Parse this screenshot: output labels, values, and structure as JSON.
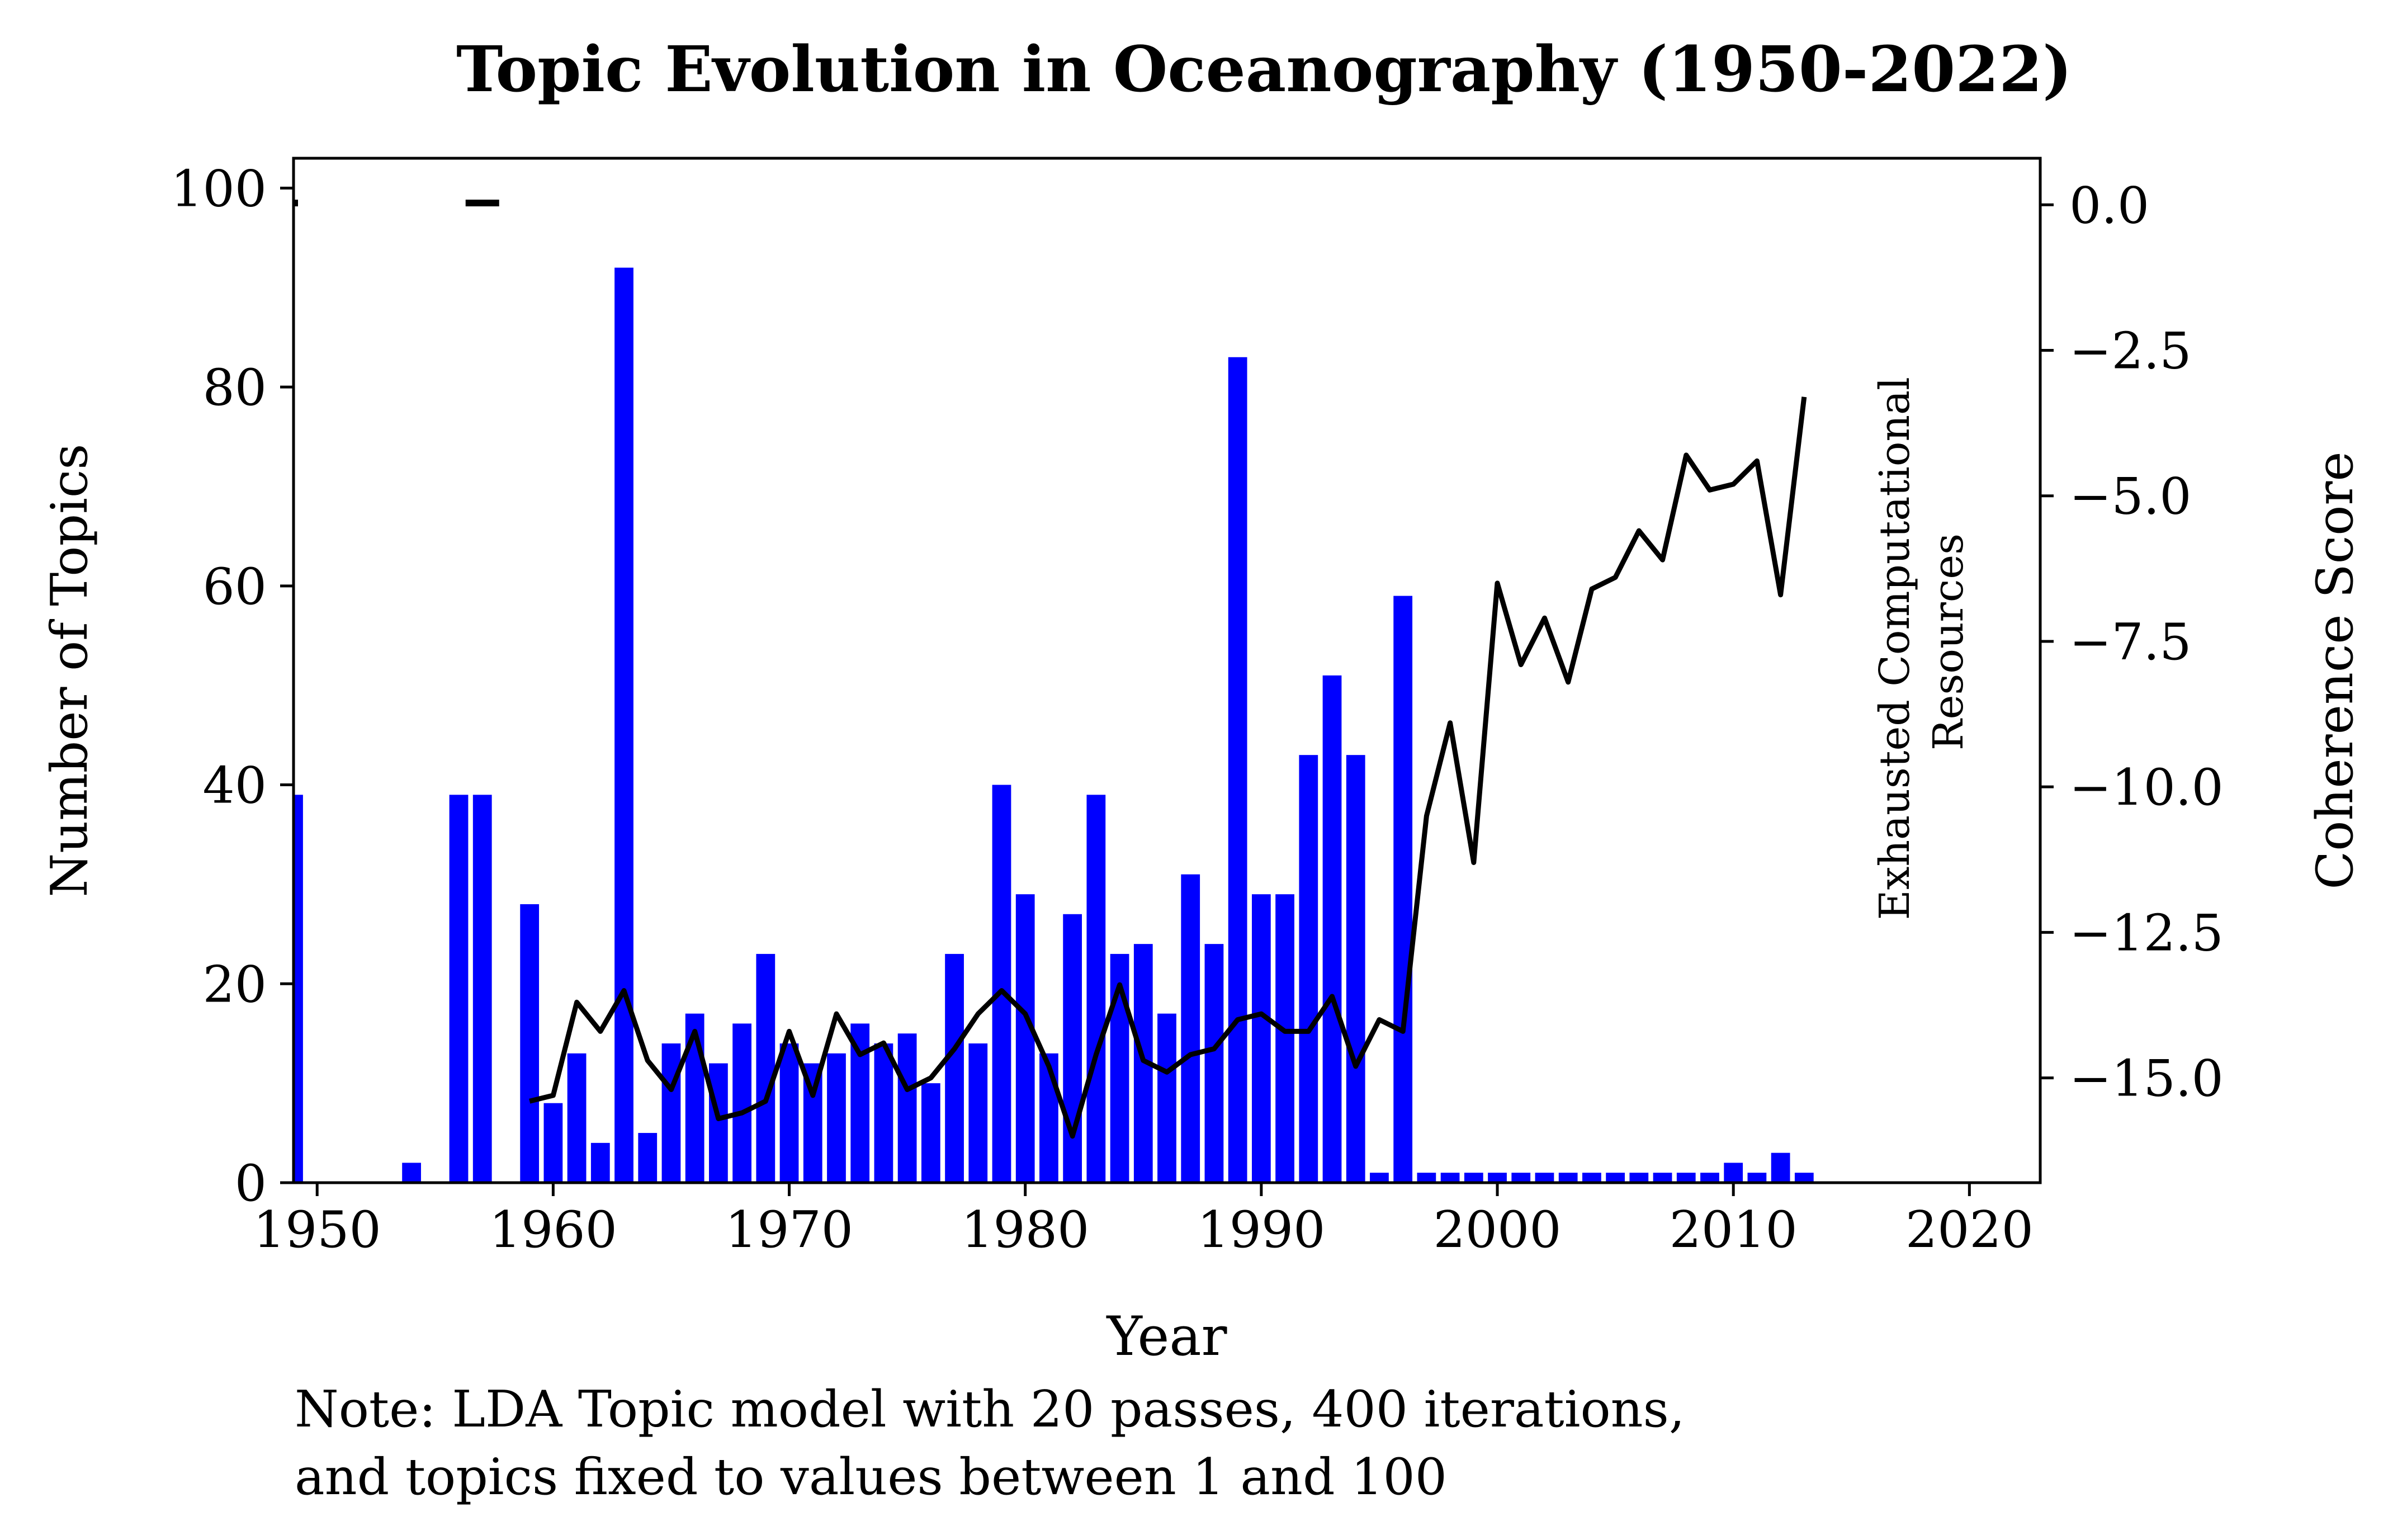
{
  "chart_data": {
    "type": "bar",
    "title": "Topic Evolution in Oceanography (1950-2022)",
    "xlabel": "Year",
    "ylabel": "Number of Topics",
    "y2label": "Coherence Score",
    "xlim": [
      1949,
      2023
    ],
    "ylim": [
      0,
      103
    ],
    "y2lim": [
      -16.8,
      0.8
    ],
    "xticks": [
      1950,
      1960,
      1970,
      1980,
      1990,
      2000,
      2010,
      2020
    ],
    "xtick_labels": [
      "1950",
      "1960",
      "1970",
      "1980",
      "1990",
      "2000",
      "2010",
      "2020"
    ],
    "yticks": [
      0,
      20,
      40,
      60,
      80,
      100
    ],
    "ytick_labels": [
      "0",
      "20",
      "40",
      "60",
      "80",
      "100"
    ],
    "y2ticks": [
      0,
      -2.5,
      -5,
      -7.5,
      -10,
      -12.5,
      -15
    ],
    "y2tick_labels": [
      "0.0",
      "−2.5",
      "−5.0",
      "−7.5",
      "−10.0",
      "−12.5",
      "−15.0"
    ],
    "annotation": "Exhausted Computational Resources",
    "annotation_lines": [
      "Exhausted Computational",
      "Resources"
    ],
    "note_lines": [
      "Note: LDA Topic model with 20 passes, 400 iterations,",
      "and topics fixed to values between 1 and 100"
    ],
    "bar_color": "#0000ff",
    "line_color": "#000000",
    "bars": {
      "x": [
        1949,
        1954,
        1956,
        1957,
        1959,
        1960,
        1961,
        1962,
        1963,
        1964,
        1965,
        1966,
        1967,
        1968,
        1969,
        1970,
        1971,
        1972,
        1973,
        1974,
        1975,
        1976,
        1977,
        1978,
        1979,
        1980,
        1981,
        1982,
        1983,
        1984,
        1985,
        1986,
        1987,
        1988,
        1989,
        1990,
        1991,
        1992,
        1993,
        1994,
        1995,
        1996,
        1997,
        1998,
        1999,
        2000,
        2001,
        2002,
        2003,
        2004,
        2005,
        2006,
        2007,
        2008,
        2009,
        2010,
        2011,
        2012,
        2013
      ],
      "values": [
        39,
        2,
        39,
        39,
        28,
        8,
        13,
        4,
        92,
        5,
        14,
        17,
        12,
        16,
        23,
        14,
        12,
        13,
        16,
        14,
        15,
        10,
        23,
        14,
        40,
        29,
        13,
        27,
        39,
        23,
        24,
        17,
        31,
        24,
        83,
        29,
        29,
        43,
        51,
        43,
        1,
        59,
        1,
        1,
        1,
        1,
        1,
        1,
        1,
        1,
        1,
        1,
        1,
        1,
        1,
        2,
        1,
        3,
        1
      ]
    },
    "coherence_line": {
      "x": [
        1959,
        1960,
        1961,
        1962,
        1963,
        1964,
        1965,
        1966,
        1967,
        1968,
        1969,
        1970,
        1971,
        1972,
        1973,
        1974,
        1975,
        1976,
        1977,
        1978,
        1979,
        1980,
        1981,
        1982,
        1983,
        1984,
        1985,
        1986,
        1987,
        1988,
        1989,
        1990,
        1991,
        1992,
        1993,
        1994,
        1995,
        1996,
        1997,
        1998,
        1999,
        2000,
        2001,
        2002,
        2003,
        2004,
        2005,
        2006,
        2007,
        2008,
        2009,
        2010,
        2011,
        2012,
        2013
      ],
      "values": [
        -15.4,
        -15.3,
        -13.7,
        -14.2,
        -13.5,
        -14.7,
        -15.2,
        -14.2,
        -15.7,
        -15.6,
        -15.4,
        -14.2,
        -15.3,
        -13.9,
        -14.6,
        -14.4,
        -15.2,
        -15.0,
        -14.5,
        -13.9,
        -13.5,
        -13.9,
        -14.8,
        -16.0,
        -14.6,
        -13.4,
        -14.7,
        -14.9,
        -14.6,
        -14.5,
        -14.0,
        -13.9,
        -14.2,
        -14.2,
        -13.6,
        -14.8,
        -14.0,
        -14.2,
        -10.5,
        -8.9,
        -11.3,
        -6.5,
        -7.9,
        -7.1,
        -8.2,
        -6.6,
        -6.4,
        -5.6,
        -6.1,
        -4.3,
        -4.9,
        -4.8,
        -4.4,
        -6.7,
        -3.3
      ]
    },
    "extra_marks": [
      {
        "x": 1949,
        "y": 98.5
      },
      {
        "x": 1957,
        "y": 98.5
      }
    ]
  }
}
